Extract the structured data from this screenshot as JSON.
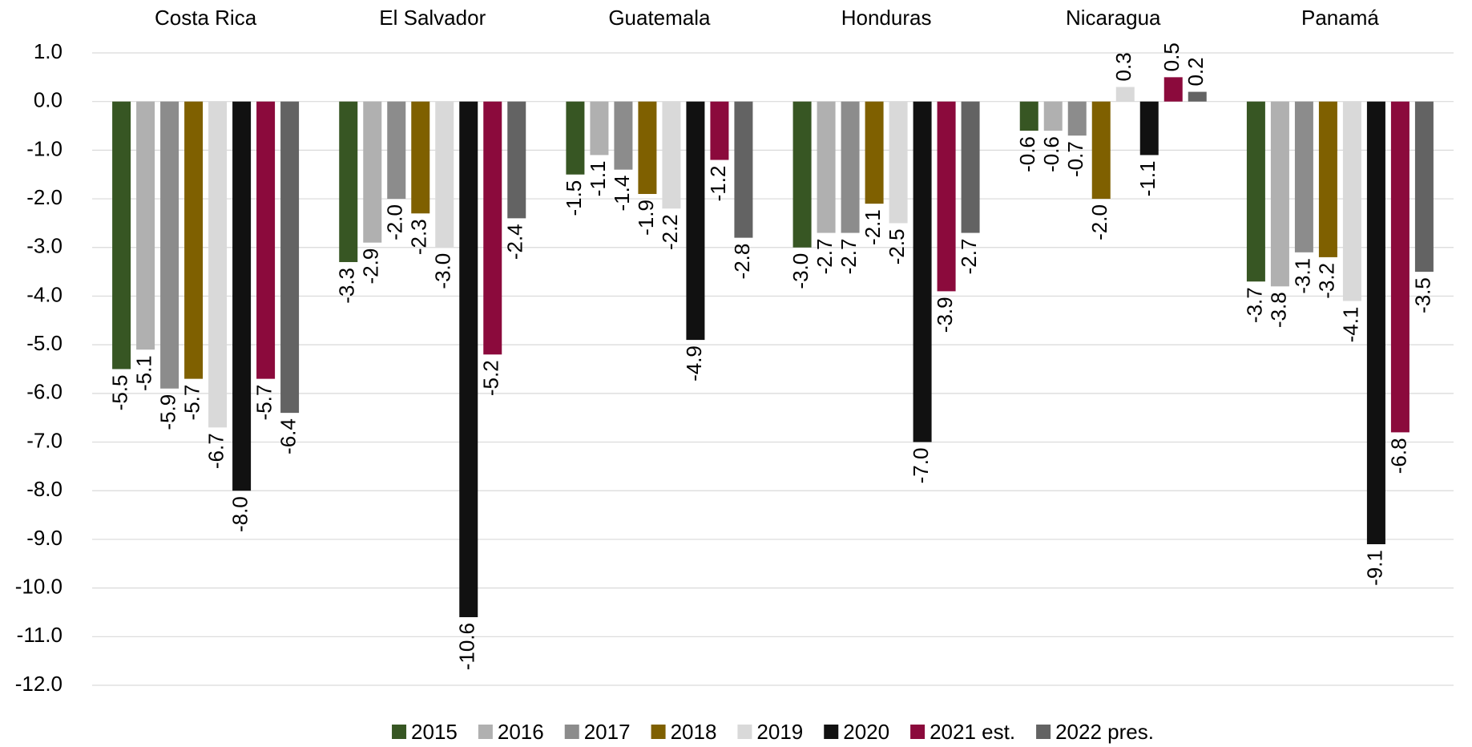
{
  "chart_data": {
    "type": "bar",
    "categories": [
      "Costa Rica",
      "El Salvador",
      "Guatemala",
      "Honduras",
      "Nicaragua",
      "Panamá"
    ],
    "series": [
      {
        "name": "2015",
        "color": "#375623",
        "values": [
          -5.5,
          -3.3,
          -1.5,
          -3.0,
          -0.6,
          -3.7
        ],
        "value_labels": [
          "-5.5",
          "-3.3",
          "-1.5",
          "-3.0",
          "-0.6",
          "-3.7"
        ]
      },
      {
        "name": "2016",
        "color": "#b0b0b0",
        "values": [
          -5.1,
          -2.9,
          -1.1,
          -2.7,
          -0.6,
          -3.8
        ],
        "value_labels": [
          "-5.1",
          "-2.9",
          "-1.1",
          "-2.7",
          "-0.6",
          "-3.8"
        ]
      },
      {
        "name": "2017",
        "color": "#8c8c8c",
        "values": [
          -5.9,
          -2.0,
          -1.4,
          -2.7,
          -0.7,
          -3.1
        ],
        "value_labels": [
          "-5.9",
          "-2.0",
          "-1.4",
          "-2.7",
          "-0.7",
          "-3.1"
        ]
      },
      {
        "name": "2018",
        "color": "#7f6000",
        "values": [
          -5.7,
          -2.3,
          -1.9,
          -2.1,
          -2.0,
          -3.2
        ],
        "value_labels": [
          "-5.7",
          "-2.3",
          "-1.9",
          "-2.1",
          "-2.0",
          "-3.2"
        ]
      },
      {
        "name": "2019",
        "color": "#d9d9d9",
        "values": [
          -6.7,
          -3.0,
          -2.2,
          -2.5,
          0.3,
          -4.1
        ],
        "value_labels": [
          "-6.7",
          "-3.0",
          "-2.2",
          "-2.5",
          "0.3",
          "-4.1"
        ]
      },
      {
        "name": "2020",
        "color": "#111111",
        "values": [
          -8.0,
          -10.6,
          -4.9,
          -7.0,
          -1.1,
          -9.1
        ],
        "value_labels": [
          "-8.0",
          "-10.6",
          "-4.9",
          "-7.0",
          "-1.1",
          "-9.1"
        ]
      },
      {
        "name": "2021 est.",
        "color": "#8b0a3c",
        "values": [
          -5.7,
          -5.2,
          -1.2,
          -3.9,
          0.5,
          -6.8
        ],
        "value_labels": [
          "-5.7",
          "-5.2",
          "-1.2",
          "-3.9",
          "0.5",
          "-6.8"
        ]
      },
      {
        "name": "2022 pres.",
        "color": "#636363",
        "values": [
          -6.4,
          -2.4,
          -2.8,
          -2.7,
          0.2,
          -3.5
        ],
        "value_labels": [
          "-6.4",
          "-2.4",
          "-2.8",
          "-2.7",
          "0.2",
          "-3.5"
        ]
      }
    ],
    "ylim": [
      -12,
      1
    ],
    "yticks": [
      {
        "value": 1,
        "label": "1.0"
      },
      {
        "value": 0,
        "label": "0.0"
      },
      {
        "value": -1,
        "label": "-1.0"
      },
      {
        "value": -2,
        "label": "-2.0"
      },
      {
        "value": -3,
        "label": "-3.0"
      },
      {
        "value": -4,
        "label": "-4.0"
      },
      {
        "value": -5,
        "label": "-5.0"
      },
      {
        "value": -6,
        "label": "-6.0"
      },
      {
        "value": -7,
        "label": "-7.0"
      },
      {
        "value": -8,
        "label": "-8.0"
      },
      {
        "value": -9,
        "label": "-9.0"
      },
      {
        "value": -10,
        "label": "-10.0"
      },
      {
        "value": -11,
        "label": "-11.0"
      },
      {
        "value": -12,
        "label": "-12.0"
      }
    ],
    "grid": true,
    "legend": "bottom"
  }
}
